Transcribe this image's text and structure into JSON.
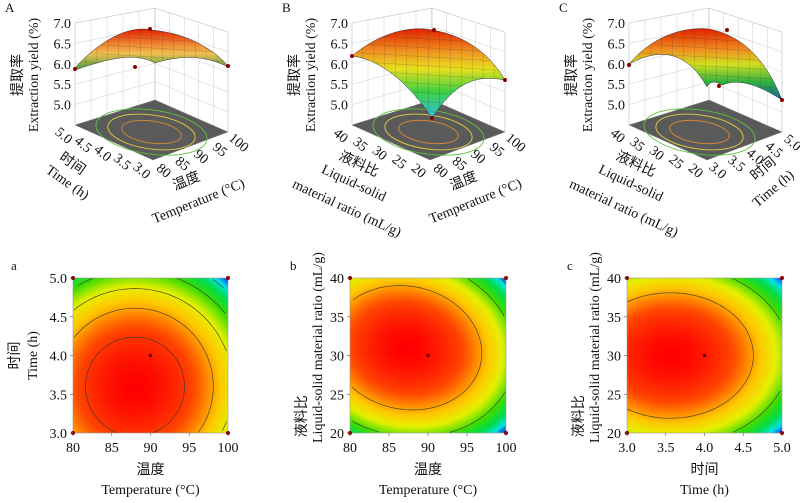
{
  "chart_data": [
    {
      "id": "A",
      "panel_label": "A",
      "type": "surface3d",
      "zlabel_cn": "提取率",
      "zlabel_en": "Extraction yield (%)",
      "z_ticks": [
        "5.0",
        "5.5",
        "6.0",
        "6.5",
        "7.0"
      ],
      "zlim": [
        4.5,
        7.0
      ],
      "x_factor": {
        "cn": "温度",
        "en": "Temperature (°C)",
        "ticks": [
          "80",
          "85",
          "90",
          "95",
          "100"
        ],
        "range": [
          80,
          100
        ]
      },
      "y_factor": {
        "cn": "时间",
        "en": "Time (h)",
        "ticks": [
          "3.0",
          "3.5",
          "4.0",
          "4.5",
          "5.0"
        ],
        "range": [
          3.0,
          5.0
        ]
      },
      "optimum": {
        "x": 88,
        "y": 3.6,
        "z": 6.8
      },
      "corner_points": [
        5.8,
        5.9,
        6.0,
        5.9
      ],
      "floor_contours": "elliptical contour projection on grey floor"
    },
    {
      "id": "B",
      "panel_label": "B",
      "type": "surface3d",
      "zlabel_cn": "提取率",
      "zlabel_en": "Extraction yield (%)",
      "z_ticks": [
        "5.0",
        "5.5",
        "6.0",
        "6.5",
        "7.0"
      ],
      "zlim": [
        4.5,
        7.0
      ],
      "x_factor": {
        "cn": "温度",
        "en": "Temperature (°C)",
        "ticks": [
          "80",
          "85",
          "90",
          "95",
          "100"
        ],
        "range": [
          80,
          100
        ]
      },
      "y_factor": {
        "cn": "液料比",
        "en1": "Liquid-solid",
        "en2": "material ratio (mL/g)",
        "ticks": [
          "20",
          "25",
          "30",
          "35",
          "40"
        ],
        "range": [
          20,
          40
        ]
      },
      "optimum": {
        "x": 87,
        "y": 31,
        "z": 6.8
      },
      "corner_points": [
        6.1,
        5.6,
        4.8
      ],
      "floor_contours": "elliptical contour projection on grey floor"
    },
    {
      "id": "C",
      "panel_label": "C",
      "type": "surface3d",
      "zlabel_cn": "提取率",
      "zlabel_en": "Extraction yield (%)",
      "z_ticks": [
        "5.0",
        "5.5",
        "6.0",
        "6.5",
        "7.0"
      ],
      "zlim": [
        4.5,
        7.0
      ],
      "x_factor": {
        "cn": "时间",
        "en": "Time (h)",
        "ticks": [
          "3.0",
          "3.5",
          "4.0",
          "4.5",
          "5.0"
        ],
        "range": [
          3.0,
          5.0
        ]
      },
      "y_factor": {
        "cn": "液料比",
        "en1": "Liquid-solid",
        "en2": "material ratio (mL/g)",
        "ticks": [
          "20",
          "25",
          "30",
          "35",
          "40"
        ],
        "range": [
          20,
          40
        ]
      },
      "optimum": {
        "x": 3.5,
        "y": 30,
        "z": 6.8
      },
      "corner_points": [
        5.9,
        5.4,
        5.0
      ],
      "floor_contours": "elliptical contour projection on grey floor"
    },
    {
      "id": "a",
      "panel_label": "a",
      "type": "heatmap",
      "xlabel_cn": "温度",
      "xlabel_en": "Temperature (°C)",
      "ylabel_cn": "时间",
      "ylabel_en": "Time (h)",
      "x_ticks": [
        "80",
        "85",
        "90",
        "95",
        "100"
      ],
      "y_ticks": [
        "3.0",
        "3.5",
        "4.0",
        "4.5",
        "5.0"
      ],
      "xlim": [
        80,
        100
      ],
      "ylim": [
        3.0,
        5.0
      ],
      "center": {
        "x": 88,
        "y": 3.6
      },
      "radius": {
        "x": 1,
        "y": 1
      },
      "contour_levels": 5,
      "center_point": {
        "x": 90,
        "y": 4.0
      },
      "colormap": [
        "#ff0000",
        "#ff6000",
        "#ffe000",
        "#00e000",
        "#00ffff",
        "#0040ff"
      ]
    },
    {
      "id": "b",
      "panel_label": "b",
      "type": "heatmap",
      "xlabel_cn": "温度",
      "xlabel_en": "Temperature (°C)",
      "ylabel_cn": "液料比",
      "ylabel_en": "Liquid-solid material ratio (mL/g)",
      "x_ticks": [
        "80",
        "85",
        "90",
        "95",
        "100"
      ],
      "y_ticks": [
        "20",
        "25",
        "30",
        "35",
        "40"
      ],
      "xlim": [
        80,
        100
      ],
      "ylim": [
        20,
        40
      ],
      "center": {
        "x": 87,
        "y": 31
      },
      "contour_levels": 3,
      "center_point": {
        "x": 90,
        "y": 30
      },
      "colormap": [
        "#ff0000",
        "#ff6000",
        "#ffe000",
        "#00e000",
        "#00ffff",
        "#0040ff"
      ]
    },
    {
      "id": "c",
      "panel_label": "c",
      "type": "heatmap",
      "xlabel_cn": "时间",
      "xlabel_en": "Time (h)",
      "ylabel_cn": "液料比",
      "ylabel_en": "Liquid-solid material ratio (mL/g)",
      "x_ticks": [
        "3.0",
        "3.5",
        "4.0",
        "4.5",
        "5.0"
      ],
      "y_ticks": [
        "20",
        "25",
        "30",
        "35",
        "40"
      ],
      "xlim": [
        3.0,
        5.0
      ],
      "ylim": [
        20,
        40
      ],
      "center": {
        "x": 3.5,
        "y": 30
      },
      "contour_levels": 3,
      "center_point": {
        "x": 4.0,
        "y": 30
      },
      "colormap": [
        "#ff0000",
        "#ff6000",
        "#ffe000",
        "#00e000",
        "#00ffff",
        "#0040ff"
      ]
    }
  ]
}
